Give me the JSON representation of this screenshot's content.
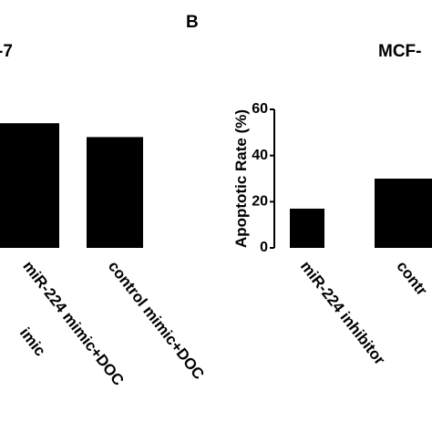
{
  "panel_label": "B",
  "chart_data": [
    {
      "type": "bar",
      "title": "-7",
      "categories": [
        "imic",
        "miR-224 mimic+DOC",
        "control mimic+DOC"
      ],
      "values": [
        null,
        54,
        48
      ],
      "color": "#000000",
      "ylim": [
        0,
        60
      ]
    },
    {
      "type": "bar",
      "title": "MCF-",
      "y_label": "Apoptotic Rate (%)",
      "categories": [
        "miR-224 inhibitor",
        "contr"
      ],
      "values": [
        17,
        30
      ],
      "color": "#000000",
      "ylim": [
        0,
        60
      ],
      "yticks": [
        0,
        20,
        40,
        60
      ]
    }
  ]
}
